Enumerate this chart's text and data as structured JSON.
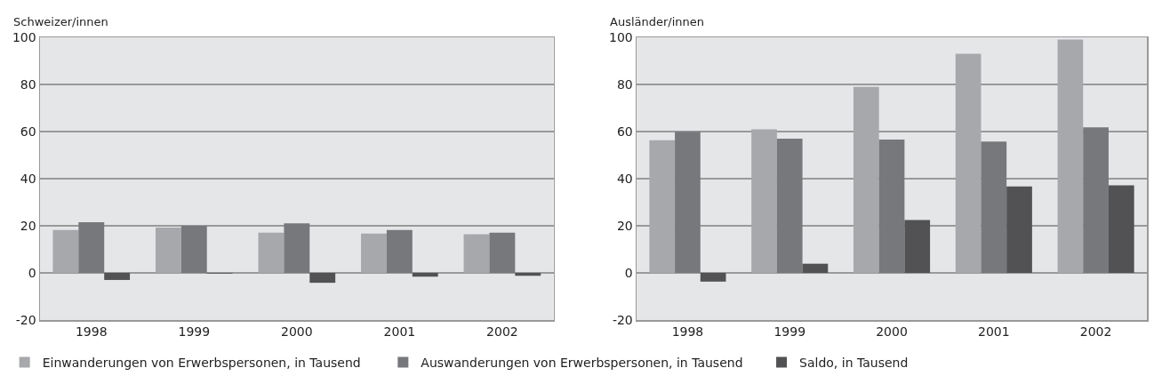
{
  "chart_data": [
    {
      "type": "bar",
      "title": "Schweizer/innen",
      "categories": [
        "1998",
        "1999",
        "2000",
        "2001",
        "2002"
      ],
      "ylim": [
        -20,
        100
      ],
      "yticks": [
        -20,
        0,
        20,
        40,
        60,
        80,
        100
      ],
      "grid": "y",
      "legend": "bottom",
      "series": [
        {
          "name": "Einwanderungen von Erwerbspersonen, in Tausend",
          "color": "#a7a8ab",
          "values": [
            18.2,
            19.2,
            17.1,
            16.7,
            16.4
          ]
        },
        {
          "name": "Auswanderungen von Erwerbspersonen, in Tausend",
          "color": "#77787c",
          "values": [
            21.5,
            20,
            21,
            18.2,
            17.1
          ]
        },
        {
          "name": "Saldo, in Tausend",
          "color": "#525254",
          "values": [
            -3,
            -0.3,
            -4.2,
            -1.6,
            -1.2
          ]
        }
      ]
    },
    {
      "type": "bar",
      "title": "Ausländer/innen",
      "categories": [
        "1998",
        "1999",
        "2000",
        "2001",
        "2002"
      ],
      "ylim": [
        -20,
        100
      ],
      "yticks": [
        -20,
        0,
        20,
        40,
        60,
        80,
        100
      ],
      "grid": "y",
      "series": [
        {
          "color": "#a7a8ab",
          "values": [
            56.3,
            60.9,
            79,
            93,
            99.1
          ]
        },
        {
          "color": "#77787c",
          "values": [
            59.9,
            57,
            56.6,
            55.8,
            61.8
          ]
        },
        {
          "color": "#525254",
          "values": [
            -3.7,
            3.9,
            22.5,
            36.7,
            37.2
          ]
        }
      ]
    }
  ]
}
